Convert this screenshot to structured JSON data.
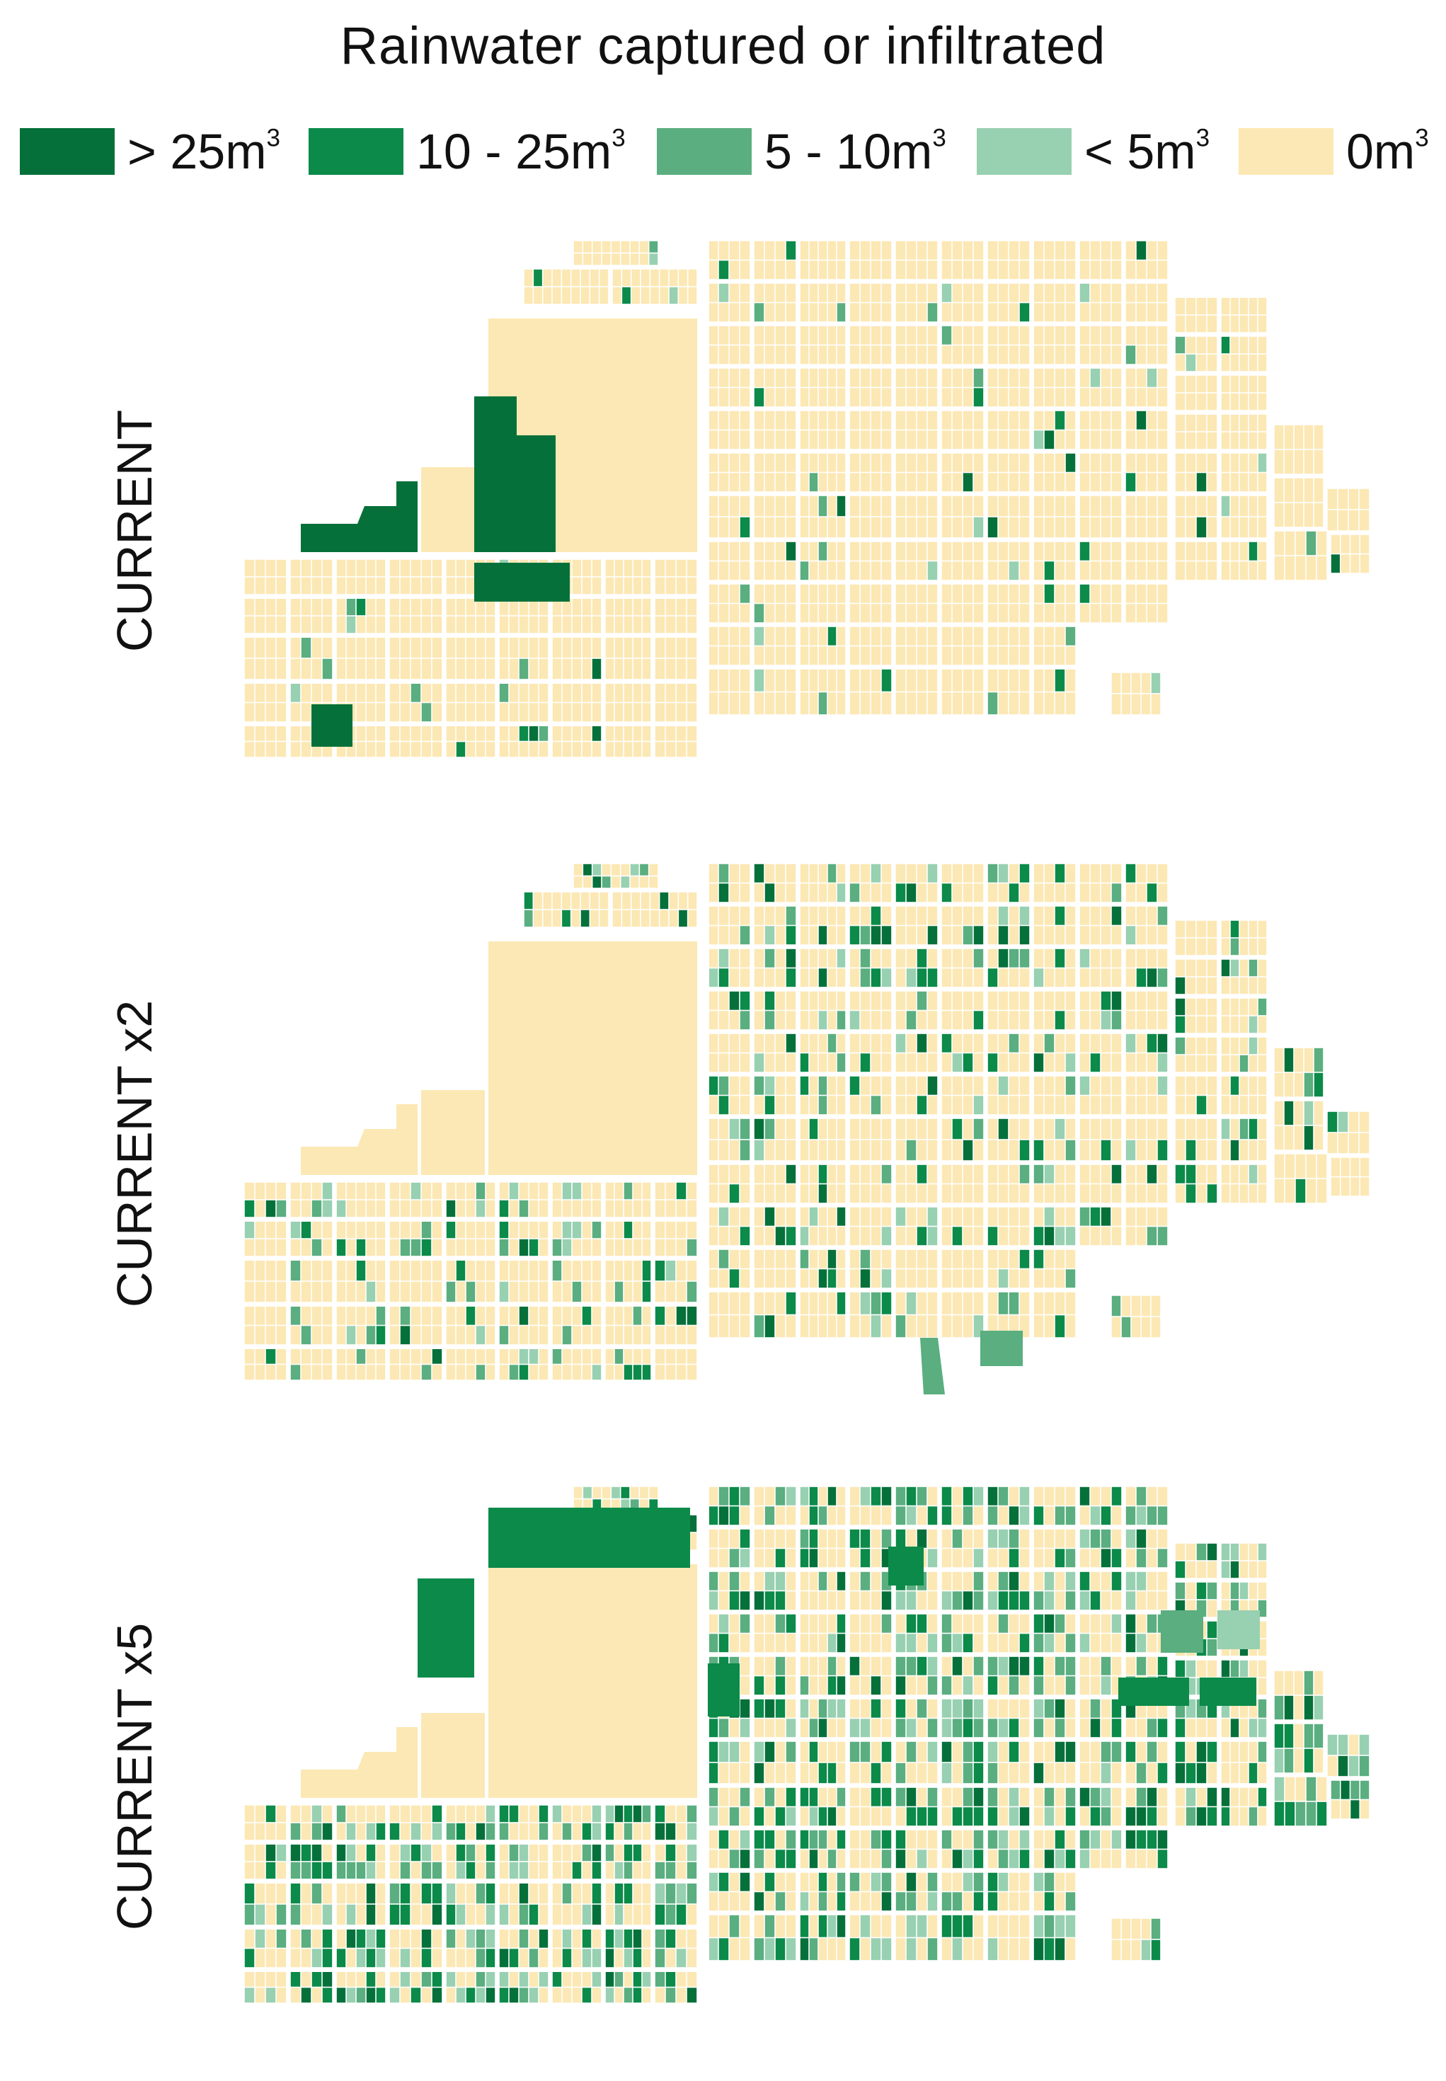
{
  "title": "Rainwater captured or infiltrated",
  "legend": [
    {
      "label": "> 25m",
      "sup": "3",
      "color": "#05703a"
    },
    {
      "label": "10 - 25m",
      "sup": "3",
      "color": "#0b8a4a"
    },
    {
      "label": "5 - 10m",
      "sup": "3",
      "color": "#5aae80"
    },
    {
      "label": "< 5m",
      "sup": "3",
      "color": "#98d0b2"
    },
    {
      "label": "0m",
      "sup": "3",
      "color": "#fce8b4"
    }
  ],
  "panels": [
    {
      "label": "CURRENT",
      "density": 0.05
    },
    {
      "label": "CURRENT x2",
      "density": 0.23
    },
    {
      "label": "CURRENT x5",
      "density": 0.52
    }
  ]
}
